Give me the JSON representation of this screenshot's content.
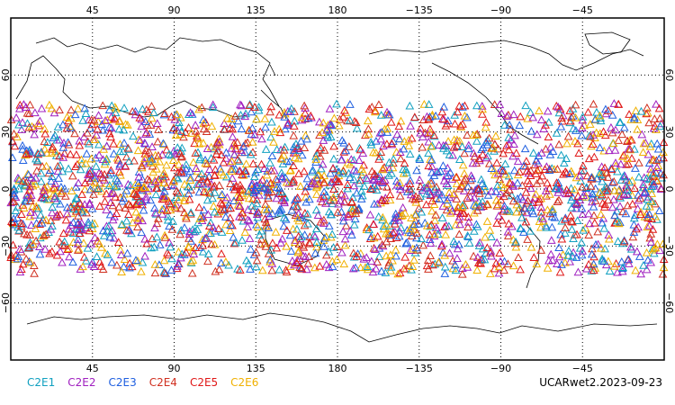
{
  "map": {
    "top_lon_ticks": [
      "45",
      "90",
      "135",
      "180",
      "−135",
      "−90",
      "−45"
    ],
    "bottom_lon_ticks": [
      "45",
      "90",
      "135",
      "180",
      "−135",
      "−90",
      "−45"
    ],
    "lat_ticks_left": [
      "60",
      "30",
      "0",
      "−30",
      "−60"
    ],
    "lat_ticks_right": [
      "60",
      "30",
      "0",
      "−30",
      "−60"
    ],
    "lat_band_degrees": [
      -45,
      45
    ],
    "marker_shape": "open-triangle"
  },
  "legend": {
    "items": [
      {
        "label": "C2E1",
        "color": "#11a0c0"
      },
      {
        "label": "C2E2",
        "color": "#a020c0"
      },
      {
        "label": "C2E3",
        "color": "#2060e0"
      },
      {
        "label": "C2E4",
        "color": "#d03020"
      },
      {
        "label": "C2E5",
        "color": "#e01818"
      },
      {
        "label": "C2E6",
        "color": "#f0b000"
      }
    ]
  },
  "caption": "UCARwet2.2023-09-23"
}
